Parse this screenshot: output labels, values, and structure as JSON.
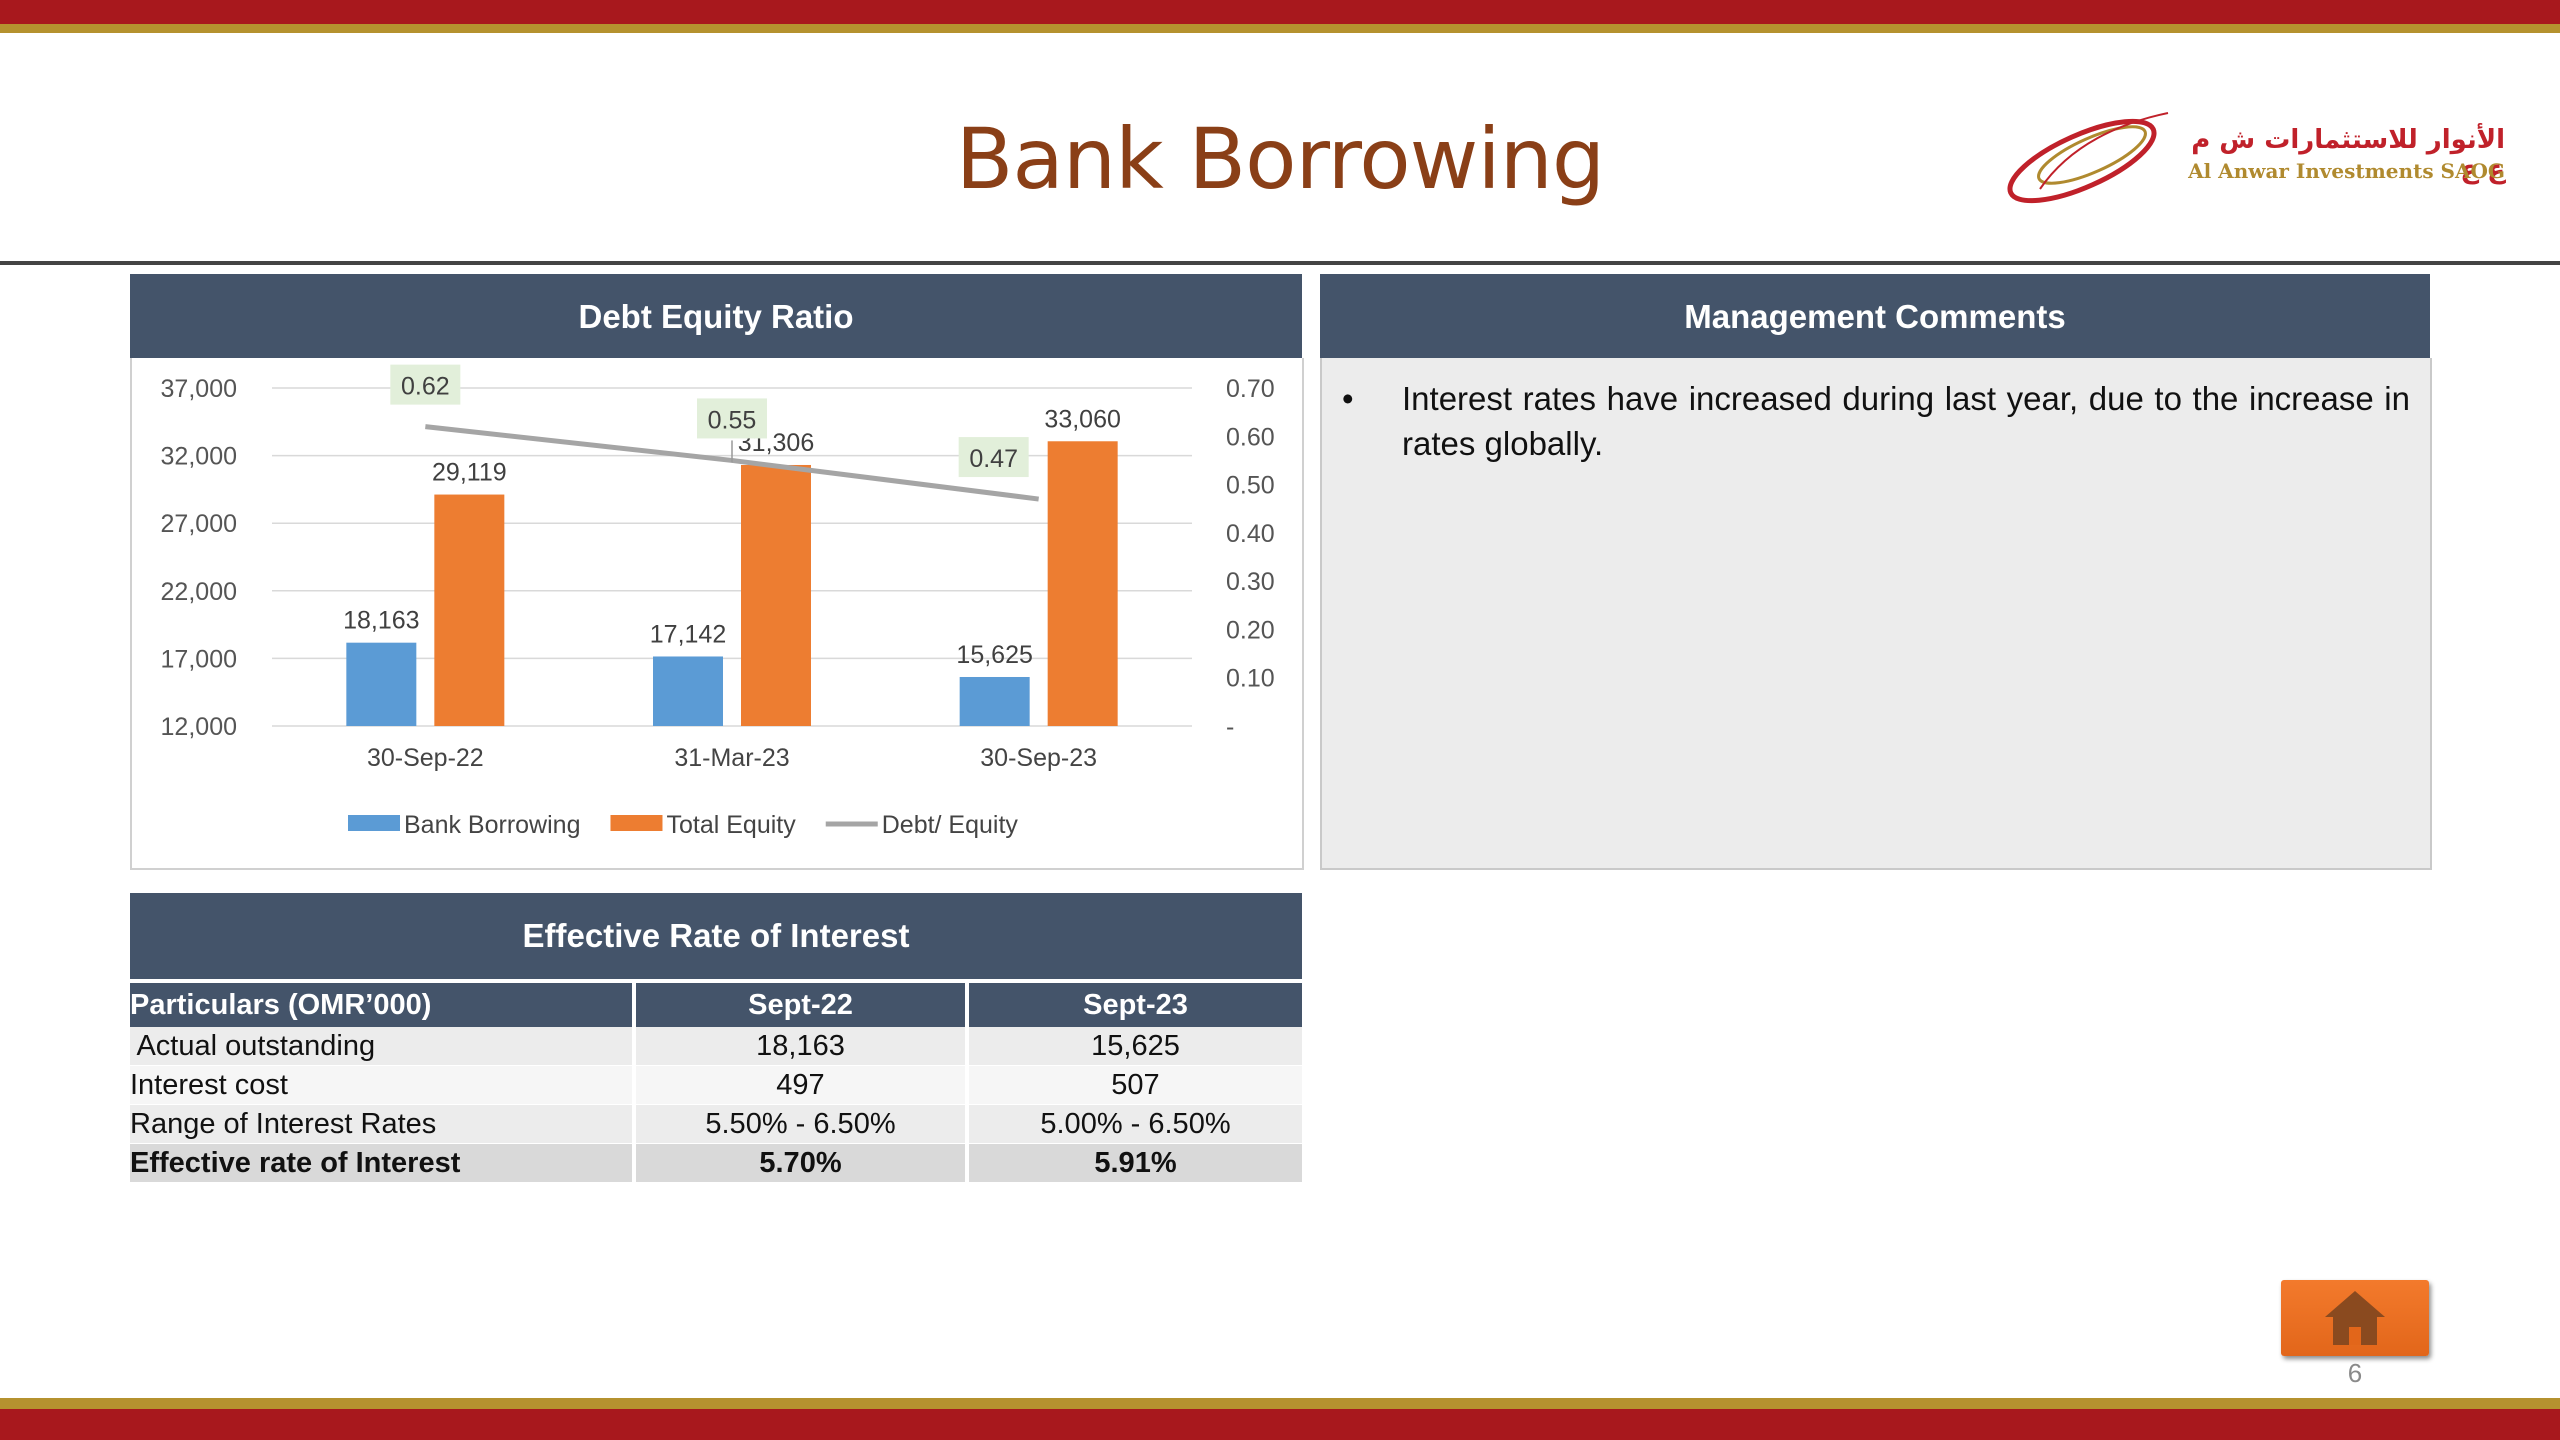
{
  "slide": {
    "title": "Bank Borrowing",
    "page_number": "6"
  },
  "logo": {
    "arabic": "الأنوار للاستثمارات ش م ع ع",
    "english": "Al Anwar Investments SAOG"
  },
  "chart_panel": {
    "header": "Debt Equity Ratio"
  },
  "chart_data": {
    "type": "bar",
    "title": "Debt Equity Ratio",
    "categories": [
      "30-Sep-22",
      "31-Mar-23",
      "30-Sep-23"
    ],
    "series": [
      {
        "name": "Bank Borrowing",
        "type": "bar",
        "color": "#5b9bd5",
        "values": [
          18163,
          17142,
          15625
        ],
        "labels": [
          "18,163",
          "17,142",
          "15,625"
        ]
      },
      {
        "name": "Total Equity",
        "type": "bar",
        "color": "#ed7d31",
        "values": [
          29119,
          31306,
          33060
        ],
        "labels": [
          "29,119",
          "31,306",
          "33,060"
        ]
      },
      {
        "name": "Debt/ Equity",
        "type": "line",
        "axis": "right",
        "color": "#a5a5a5",
        "values": [
          0.62,
          0.55,
          0.47
        ],
        "labels": [
          "0.62",
          "0.55",
          "0.47"
        ]
      }
    ],
    "y_left": {
      "min": 12000,
      "max": 37000,
      "ticks": [
        12000,
        17000,
        22000,
        27000,
        32000,
        37000
      ],
      "tick_labels": [
        "12,000",
        "17,000",
        "22,000",
        "27,000",
        "32,000",
        "37,000"
      ]
    },
    "y_right": {
      "min": 0,
      "max": 0.7,
      "ticks": [
        0,
        0.1,
        0.2,
        0.3,
        0.4,
        0.5,
        0.6,
        0.7
      ],
      "tick_labels": [
        "-",
        "0.10",
        "0.20",
        "0.30",
        "0.40",
        "0.50",
        "0.60",
        "0.70"
      ]
    },
    "grid": true,
    "legend_position": "bottom",
    "line_label_bg": "#e2efda"
  },
  "comments_panel": {
    "header": "Management Comments",
    "items": [
      "Interest rates have increased during last year, due to the increase in rates globally."
    ]
  },
  "rate_panel": {
    "header": "Effective Rate of Interest",
    "columns": [
      "Particulars (OMR’000)",
      "Sept-22",
      "Sept-23"
    ],
    "rows": [
      {
        "label": " Actual outstanding",
        "sept22": "18,163",
        "sept23": "15,625"
      },
      {
        "label": "Interest cost",
        "sept22": "497",
        "sept23": "507"
      },
      {
        "label": "Range of Interest Rates",
        "sept22": "5.50% - 6.50%",
        "sept23": "5.00% - 6.50%"
      },
      {
        "label": "Effective rate of Interest",
        "sept22": "5.70%",
        "sept23": "5.91%"
      }
    ]
  },
  "home_button": {
    "icon": "home-icon"
  }
}
